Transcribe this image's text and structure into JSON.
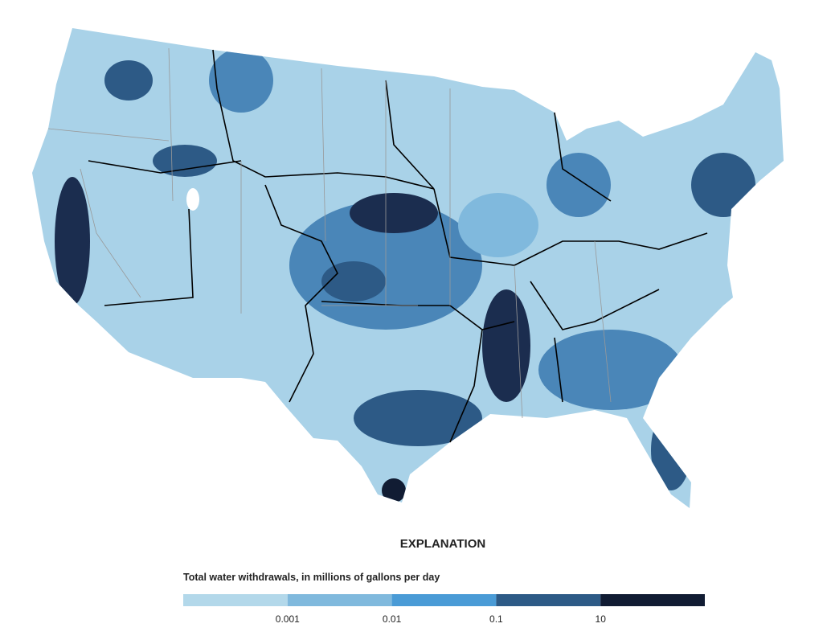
{
  "legend": {
    "title": "EXPLANATION",
    "subtitle": "Total water withdrawals, in millions of gallons per day",
    "colors": [
      "#b3d8ea",
      "#80b9dd",
      "#4a9bd6",
      "#2d5a86",
      "#111c33"
    ],
    "breaks": [
      "0.001",
      "0.01",
      "0.1",
      "10"
    ]
  }
}
